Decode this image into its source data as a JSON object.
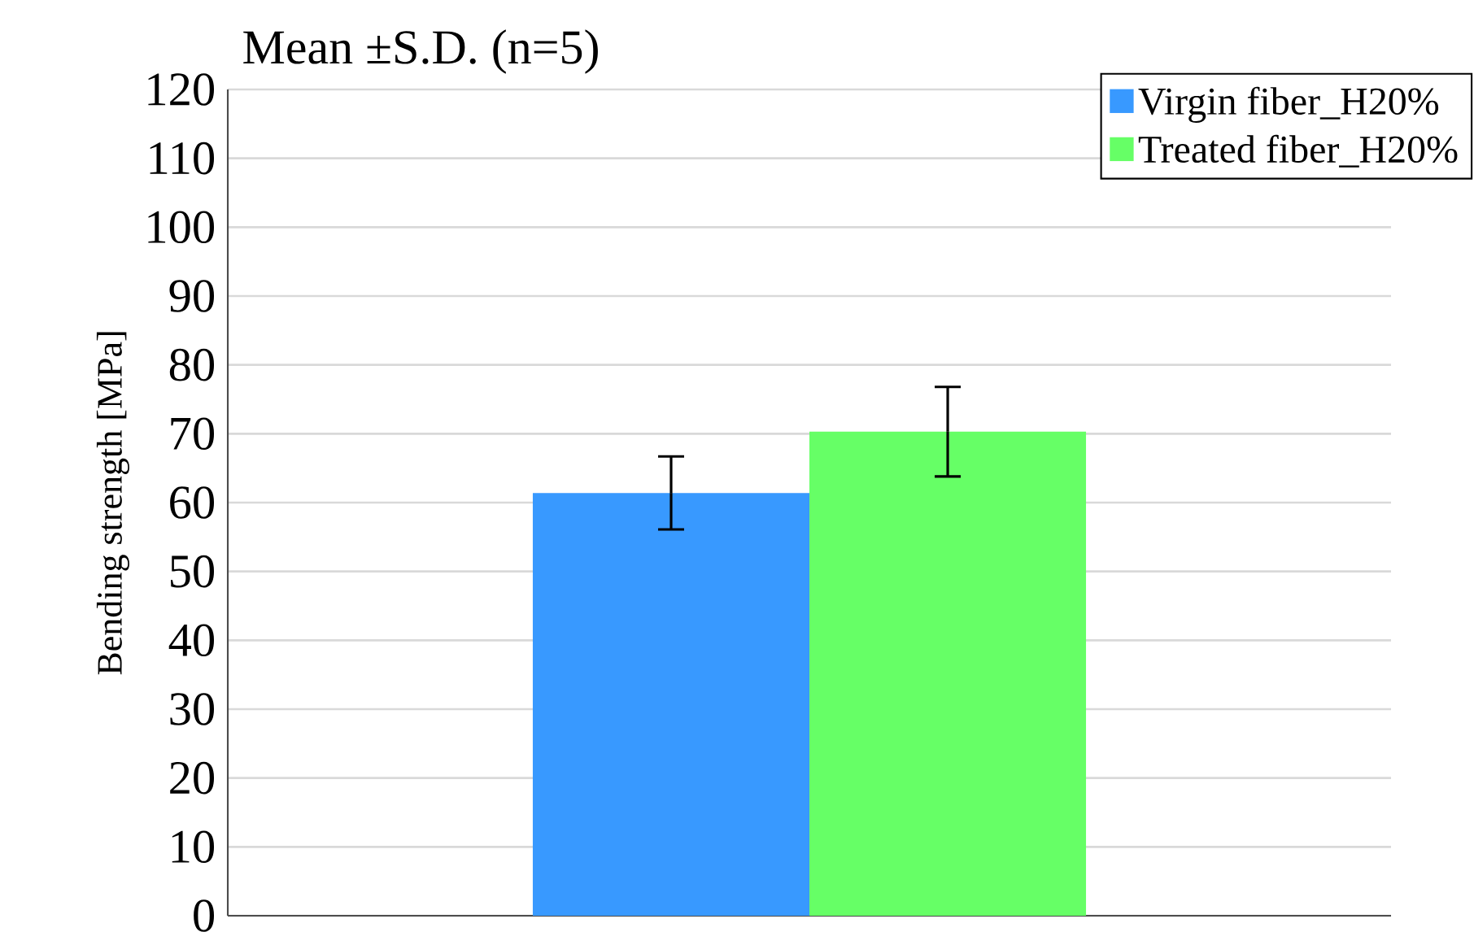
{
  "chart_data": {
    "type": "bar",
    "title": "Mean ±S.D. (n=5)",
    "ylabel": "Bending strength [MPa]",
    "categories": [
      null
    ],
    "series": [
      {
        "name": "Virgin fiber_H20%",
        "color": "#3899ff",
        "values": [
          61.4
        ],
        "errors": [
          5.3
        ]
      },
      {
        "name": "Treated fiber_H20%",
        "color": "#66ff66",
        "values": [
          70.3
        ],
        "errors": [
          6.5
        ]
      }
    ],
    "ylim": [
      0,
      120
    ],
    "yticks": [
      0,
      10,
      20,
      30,
      40,
      50,
      60,
      70,
      80,
      90,
      100,
      110,
      120
    ],
    "grid": "y",
    "legend": "top right",
    "tick_labels": "y"
  }
}
